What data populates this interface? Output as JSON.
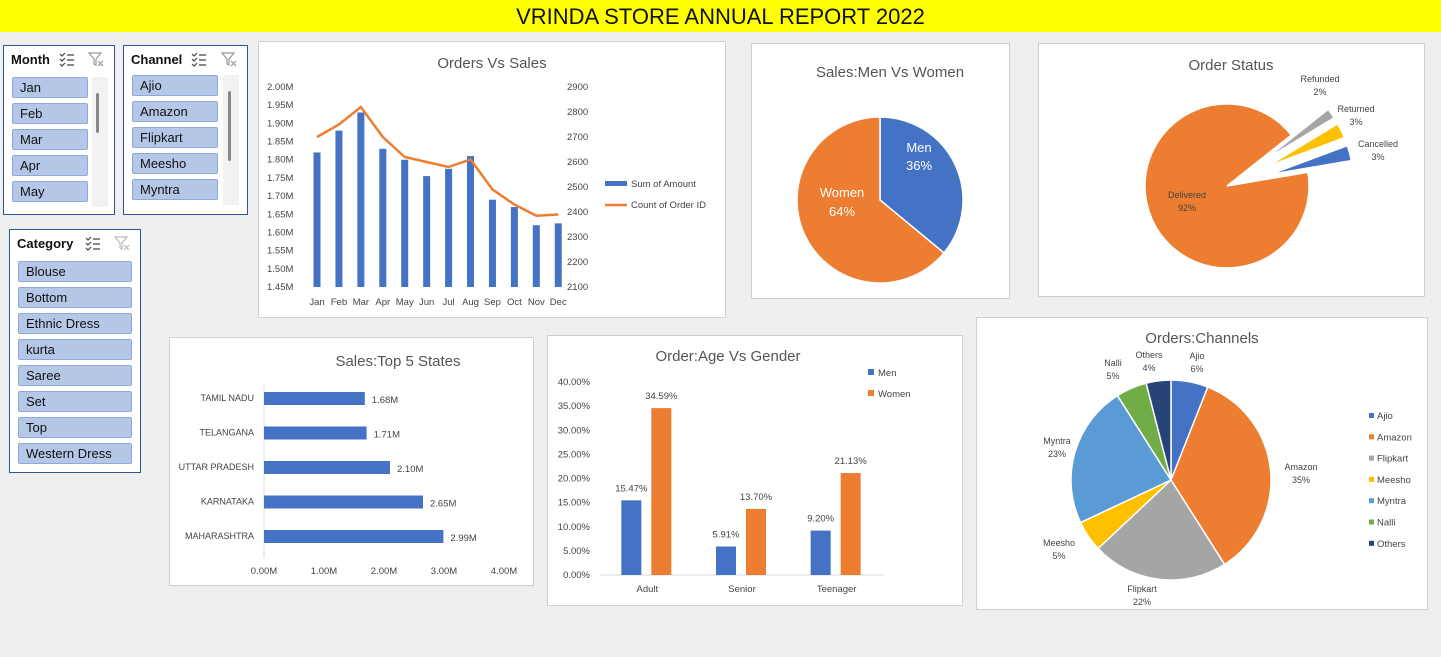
{
  "header": {
    "title": "VRINDA STORE ANNUAL REPORT 2022"
  },
  "slicers": {
    "month": {
      "title": "Month",
      "items": [
        "Jan",
        "Feb",
        "Mar",
        "Apr",
        "May"
      ]
    },
    "channel": {
      "title": "Channel",
      "items": [
        "Ajio",
        "Amazon",
        "Flipkart",
        "Meesho",
        "Myntra"
      ]
    },
    "category": {
      "title": "Category",
      "items": [
        "Blouse",
        "Bottom",
        "Ethnic Dress",
        "kurta",
        "Saree",
        "Set",
        "Top",
        "Western Dress"
      ]
    }
  },
  "colors": {
    "blue": "#4472c4",
    "orange": "#ed7d31",
    "gray": "#a5a5a5",
    "gold": "#ffc000",
    "lightblue": "#5b9bd5",
    "green": "#70ad47",
    "navy": "#264478",
    "title_bg": "#ffff00"
  },
  "chart_data": [
    {
      "id": "orders_vs_sales",
      "type": "bar",
      "title": "Orders Vs Sales",
      "categories": [
        "Jan",
        "Feb",
        "Mar",
        "Apr",
        "May",
        "Jun",
        "Jul",
        "Aug",
        "Sep",
        "Oct",
        "Nov",
        "Dec"
      ],
      "series": [
        {
          "name": "Sum of Amount",
          "type": "bar",
          "axis": "left",
          "values": [
            1.82,
            1.88,
            1.93,
            1.83,
            1.8,
            1.755,
            1.775,
            1.81,
            1.69,
            1.67,
            1.62,
            1.625
          ]
        },
        {
          "name": "Count of Order ID",
          "type": "line",
          "axis": "right",
          "values": [
            2700,
            2750,
            2820,
            2700,
            2620,
            2600,
            2580,
            2610,
            2490,
            2430,
            2385,
            2390
          ]
        }
      ],
      "left_ticks": [
        "2.00M",
        "1.95M",
        "1.90M",
        "1.85M",
        "1.80M",
        "1.75M",
        "1.70M",
        "1.65M",
        "1.60M",
        "1.55M",
        "1.50M",
        "1.45M"
      ],
      "right_ticks": [
        "2900",
        "2800",
        "2700",
        "2600",
        "2500",
        "2400",
        "2300",
        "2200",
        "2100"
      ],
      "ylim_left": [
        1.45,
        2.0
      ],
      "ylim_right": [
        2100,
        2900
      ]
    },
    {
      "id": "sales_men_women",
      "type": "pie",
      "title": "Sales:Men Vs Women",
      "labels": [
        "Men",
        "Women"
      ],
      "values": [
        36,
        64
      ],
      "value_labels": [
        "36%",
        "64%"
      ]
    },
    {
      "id": "order_status",
      "type": "pie",
      "title": "Order Status",
      "labels": [
        "Delivered",
        "Refunded",
        "Returned",
        "Cancelled"
      ],
      "values": [
        92,
        2,
        3,
        3
      ],
      "value_labels": [
        "92%",
        "2%",
        "3%",
        "3%"
      ]
    },
    {
      "id": "top5_states",
      "type": "bar",
      "title": "Sales:Top 5 States",
      "categories": [
        "TAMIL NADU",
        "TELANGANA",
        "UTTAR PRADESH",
        "KARNATAKA",
        "MAHARASHTRA"
      ],
      "values": [
        1.68,
        1.71,
        2.1,
        2.65,
        2.99
      ],
      "value_labels": [
        "1.68M",
        "1.71M",
        "2.10M",
        "2.65M",
        "2.99M"
      ],
      "x_ticks": [
        "0.00M",
        "1.00M",
        "2.00M",
        "3.00M",
        "4.00M"
      ],
      "xlim": [
        0,
        4
      ]
    },
    {
      "id": "age_vs_gender",
      "type": "bar",
      "title": "Order:Age Vs Gender",
      "categories": [
        "Adult",
        "Senior",
        "Teenager"
      ],
      "series": [
        {
          "name": "Men",
          "values": [
            15.47,
            5.91,
            9.2
          ],
          "value_labels": [
            "15.47%",
            "5.91%",
            "9.20%"
          ]
        },
        {
          "name": "Women",
          "values": [
            34.59,
            13.7,
            21.13
          ],
          "value_labels": [
            "34.59%",
            "13.70%",
            "21.13%"
          ]
        }
      ],
      "y_ticks": [
        "40.00%",
        "35.00%",
        "30.00%",
        "25.00%",
        "20.00%",
        "15.00%",
        "10.00%",
        "5.00%",
        "0.00%"
      ],
      "ylim": [
        0,
        40
      ]
    },
    {
      "id": "orders_channels",
      "type": "pie",
      "title": "Orders:Channels",
      "labels": [
        "Ajio",
        "Amazon",
        "Flipkart",
        "Meesho",
        "Myntra",
        "Nalli",
        "Others"
      ],
      "values": [
        6,
        35,
        22,
        5,
        23,
        5,
        4
      ],
      "value_labels": [
        "6%",
        "35%",
        "22%",
        "5%",
        "23%",
        "5%",
        "4%"
      ]
    }
  ]
}
